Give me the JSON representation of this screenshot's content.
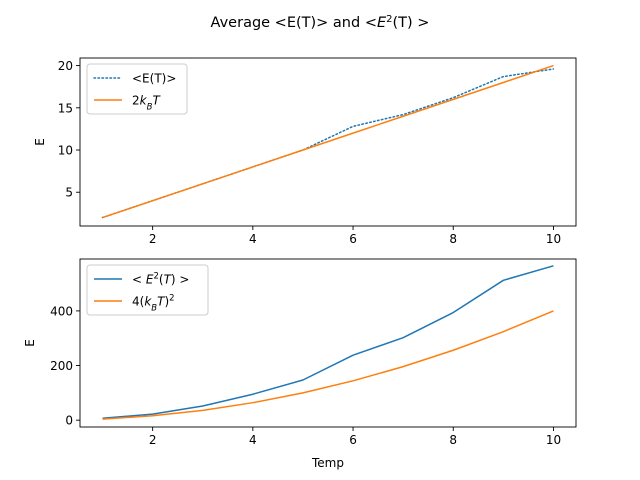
{
  "figure": {
    "title_main": "Average <E(T)> and <",
    "title_sup": "2",
    "title_end": "(T) >"
  },
  "chart_data": [
    {
      "type": "line",
      "xlabel": "",
      "ylabel": "E",
      "xlim": [
        0.55,
        10.45
      ],
      "ylim": [
        1.0,
        20.9
      ],
      "xticks": [
        2,
        4,
        6,
        8,
        10
      ],
      "yticks": [
        5,
        10,
        15,
        20
      ],
      "grid": false,
      "legend_position": "top-left",
      "x": [
        1,
        2,
        3,
        4,
        5,
        6,
        7,
        8,
        9,
        10
      ],
      "series": [
        {
          "name": "<E(T)>",
          "color": "#1f77b4",
          "linestyle": "dotted",
          "values": [
            2.0,
            4.0,
            6.0,
            8.0,
            10.0,
            12.8,
            14.2,
            16.2,
            18.7,
            19.6
          ]
        },
        {
          "name": "2kBT",
          "color": "#ff7f0e",
          "linestyle": "solid",
          "values": [
            2,
            4,
            6,
            8,
            10,
            12,
            14,
            16,
            18,
            20
          ]
        }
      ]
    },
    {
      "type": "line",
      "xlabel": "Temp",
      "ylabel": "E",
      "xlim": [
        0.55,
        10.45
      ],
      "ylim": [
        -25,
        590
      ],
      "xticks": [
        2,
        4,
        6,
        8,
        10
      ],
      "yticks": [
        0,
        200,
        400
      ],
      "grid": false,
      "legend_position": "top-left",
      "x": [
        1,
        2,
        3,
        4,
        5,
        6,
        7,
        8,
        9,
        10
      ],
      "series": [
        {
          "name": "< E2(T) >",
          "color": "#1f77b4",
          "linestyle": "solid",
          "values": [
            7,
            22,
            52,
            95,
            147,
            238,
            302,
            394,
            512,
            565
          ]
        },
        {
          "name": "4(kBT)2",
          "color": "#ff7f0e",
          "linestyle": "solid",
          "values": [
            4,
            16,
            36,
            64,
            100,
            144,
            196,
            256,
            324,
            400
          ]
        }
      ]
    }
  ]
}
